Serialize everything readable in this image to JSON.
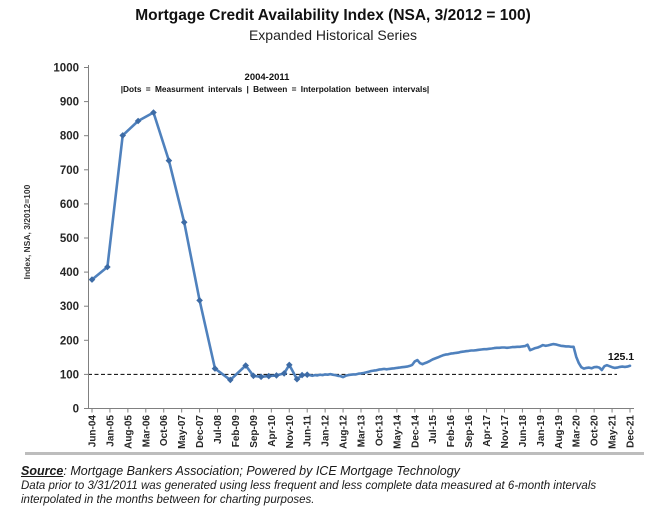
{
  "figure": {
    "title": "Mortgage Credit Availability Index (NSA, 3/2012 = 100)",
    "subtitle": "Expanded Historical Series"
  },
  "chart_data": {
    "type": "line",
    "title": "Mortgage Credit Availability Index (NSA, 3/2012 = 100)",
    "subtitle": "Expanded Historical Series",
    "xlabel": "",
    "ylabel": "Index, NSA, 3/2012=100",
    "ylim": [
      0,
      1000
    ],
    "ytick_step": 100,
    "grid": "off",
    "legend": "none",
    "reference_line_y": 100,
    "annotation_period": "2004-2011",
    "annotation_note": "|Dots = Measurment intervals   |   Between = Interpolation between intervals|",
    "last_value_label": "125.1",
    "line_color": "#4f81bd",
    "marker_color": "#3d6ba5",
    "xtick_labels": [
      "Jun-04",
      "Jan-05",
      "Aug-05",
      "Mar-06",
      "Oct-06",
      "May-07",
      "Dec-07",
      "Jul-08",
      "Feb-09",
      "Sep-09",
      "Apr-10",
      "Nov-10",
      "Jun-11",
      "Jan-12",
      "Aug-12",
      "Mar-13",
      "Oct-13",
      "May-14",
      "Dec-14",
      "Jul-15",
      "Feb-16",
      "Sep-16",
      "Apr-17",
      "Nov-17",
      "Jun-18",
      "Jan-19",
      "Aug-19",
      "Mar-20",
      "Oct-20",
      "May-21",
      "Dec-21"
    ],
    "series": [
      {
        "name": "Mortgage Credit Availability Index (NSA)",
        "note": "points with flag 1 are 6-month measurement-interval dots (2004-2011); later points are monthly",
        "points": [
          [
            "Jun-04",
            378,
            1
          ],
          [
            "Dec-04",
            415,
            1
          ],
          [
            "Jun-05",
            801,
            1
          ],
          [
            "Dec-05",
            843,
            1
          ],
          [
            "Jun-06",
            868,
            1
          ],
          [
            "Dec-06",
            727,
            1
          ],
          [
            "Jun-07",
            546,
            1
          ],
          [
            "Dec-07",
            317,
            1
          ],
          [
            "Jun-08",
            117,
            1
          ],
          [
            "Dec-08",
            84,
            1
          ],
          [
            "Jun-09",
            126,
            1
          ],
          [
            "Sep-09",
            96,
            1
          ],
          [
            "Dec-09",
            93,
            1
          ],
          [
            "Mar-10",
            95,
            1
          ],
          [
            "Jun-10",
            97,
            1
          ],
          [
            "Sep-10",
            103,
            1
          ],
          [
            "Nov-10",
            128,
            1
          ],
          [
            "Feb-11",
            86,
            1
          ],
          [
            "Apr-11",
            98,
            1
          ],
          [
            "Jun-11",
            99,
            1
          ],
          [
            "Jul-11",
            98
          ],
          [
            "Aug-11",
            96
          ],
          [
            "Sep-11",
            98
          ],
          [
            "Oct-11",
            97
          ],
          [
            "Nov-11",
            99
          ],
          [
            "Dec-11",
            98
          ],
          [
            "Jan-12",
            100
          ],
          [
            "Feb-12",
            99
          ],
          [
            "Mar-12",
            101
          ],
          [
            "Apr-12",
            99
          ],
          [
            "May-12",
            98
          ],
          [
            "Jun-12",
            96
          ],
          [
            "Jul-12",
            95
          ],
          [
            "Aug-12",
            92
          ],
          [
            "Sep-12",
            96
          ],
          [
            "Oct-12",
            98
          ],
          [
            "Nov-12",
            99
          ],
          [
            "Dec-12",
            100
          ],
          [
            "Jan-13",
            100
          ],
          [
            "Feb-13",
            102
          ],
          [
            "Mar-13",
            103
          ],
          [
            "Apr-13",
            104
          ],
          [
            "May-13",
            106
          ],
          [
            "Jun-13",
            108
          ],
          [
            "Jul-13",
            110
          ],
          [
            "Aug-13",
            111
          ],
          [
            "Sep-13",
            112
          ],
          [
            "Oct-13",
            114
          ],
          [
            "Nov-13",
            115
          ],
          [
            "Dec-13",
            116
          ],
          [
            "Jan-14",
            115
          ],
          [
            "Feb-14",
            116
          ],
          [
            "Mar-14",
            117
          ],
          [
            "Apr-14",
            118
          ],
          [
            "May-14",
            119
          ],
          [
            "Jun-14",
            120
          ],
          [
            "Jul-14",
            121
          ],
          [
            "Aug-14",
            122
          ],
          [
            "Sep-14",
            123
          ],
          [
            "Oct-14",
            125
          ],
          [
            "Nov-14",
            128
          ],
          [
            "Dec-14",
            138
          ],
          [
            "Jan-15",
            142
          ],
          [
            "Feb-15",
            133
          ],
          [
            "Mar-15",
            130
          ],
          [
            "Apr-15",
            133
          ],
          [
            "May-15",
            136
          ],
          [
            "Jun-15",
            140
          ],
          [
            "Jul-15",
            144
          ],
          [
            "Aug-15",
            147
          ],
          [
            "Sep-15",
            150
          ],
          [
            "Oct-15",
            153
          ],
          [
            "Nov-15",
            156
          ],
          [
            "Dec-15",
            158
          ],
          [
            "Jan-16",
            159
          ],
          [
            "Feb-16",
            161
          ],
          [
            "Mar-16",
            162
          ],
          [
            "Apr-16",
            163
          ],
          [
            "May-16",
            164
          ],
          [
            "Jun-16",
            166
          ],
          [
            "Jul-16",
            167
          ],
          [
            "Aug-16",
            168
          ],
          [
            "Sep-16",
            169
          ],
          [
            "Oct-16",
            170
          ],
          [
            "Nov-16",
            170
          ],
          [
            "Dec-16",
            171
          ],
          [
            "Jan-17",
            172
          ],
          [
            "Feb-17",
            173
          ],
          [
            "Mar-17",
            174
          ],
          [
            "Apr-17",
            174
          ],
          [
            "May-17",
            175
          ],
          [
            "Jun-17",
            176
          ],
          [
            "Jul-17",
            177
          ],
          [
            "Aug-17",
            178
          ],
          [
            "Sep-17",
            178
          ],
          [
            "Oct-17",
            179
          ],
          [
            "Nov-17",
            179
          ],
          [
            "Dec-17",
            178
          ],
          [
            "Jan-18",
            179
          ],
          [
            "Feb-18",
            180
          ],
          [
            "Mar-18",
            180
          ],
          [
            "Apr-18",
            181
          ],
          [
            "May-18",
            181
          ],
          [
            "Jun-18",
            182
          ],
          [
            "Jul-18",
            183
          ],
          [
            "Aug-18",
            187
          ],
          [
            "Sep-18",
            171
          ],
          [
            "Oct-18",
            174
          ],
          [
            "Nov-18",
            177
          ],
          [
            "Dec-18",
            179
          ],
          [
            "Jan-19",
            182
          ],
          [
            "Feb-19",
            186
          ],
          [
            "Mar-19",
            184
          ],
          [
            "Apr-19",
            185
          ],
          [
            "May-19",
            187
          ],
          [
            "Jun-19",
            189
          ],
          [
            "Jul-19",
            188
          ],
          [
            "Aug-19",
            186
          ],
          [
            "Sep-19",
            184
          ],
          [
            "Oct-19",
            183
          ],
          [
            "Nov-19",
            182
          ],
          [
            "Dec-19",
            182
          ],
          [
            "Jan-20",
            181
          ],
          [
            "Feb-20",
            181
          ],
          [
            "Mar-20",
            152
          ],
          [
            "Apr-20",
            133
          ],
          [
            "May-20",
            121
          ],
          [
            "Jun-20",
            117
          ],
          [
            "Jul-20",
            119
          ],
          [
            "Aug-20",
            120
          ],
          [
            "Sep-20",
            118
          ],
          [
            "Oct-20",
            121
          ],
          [
            "Nov-20",
            122
          ],
          [
            "Dec-20",
            120
          ],
          [
            "Jan-21",
            113
          ],
          [
            "Feb-21",
            124
          ],
          [
            "Mar-21",
            127
          ],
          [
            "Apr-21",
            124
          ],
          [
            "May-21",
            121
          ],
          [
            "Jun-21",
            119
          ],
          [
            "Jul-21",
            120
          ],
          [
            "Aug-21",
            122
          ],
          [
            "Sep-21",
            123
          ],
          [
            "Oct-21",
            122
          ],
          [
            "Nov-21",
            123
          ],
          [
            "Dec-21",
            125.1
          ]
        ]
      }
    ]
  },
  "source": {
    "label": "Source",
    "text": ": Mortgage Bankers Association; Powered by ICE Mortgage Technology",
    "footnote_line1": "Data prior to 3/31/2011 was generated using less frequent and less complete data measured at 6-month intervals",
    "footnote_line2": "interpolated in the months between for charting purposes."
  }
}
